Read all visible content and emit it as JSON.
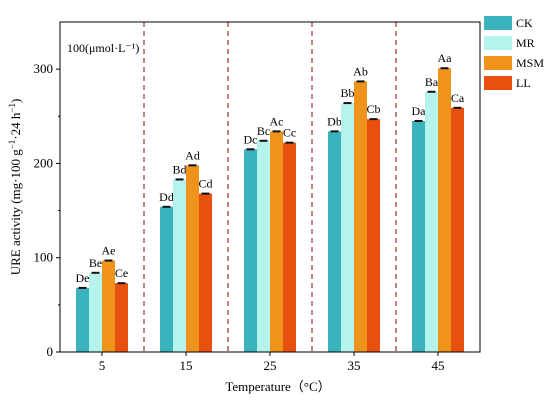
{
  "chart_data": {
    "type": "bar",
    "annotation": "100(μmol·L⁻¹)",
    "xlabel": "Temperature（°C）",
    "ylabel_parts": [
      "URE activity (mg·100 g",
      "−1",
      "·24 h",
      "−1",
      ")"
    ],
    "ylim": [
      0,
      350
    ],
    "yticks": [
      0,
      100,
      200,
      300
    ],
    "categories": [
      "5",
      "15",
      "25",
      "35",
      "45"
    ],
    "series": [
      {
        "name": "CK",
        "color": "#3bb3bd",
        "values": [
          68,
          154,
          215,
          234,
          245
        ],
        "labels": [
          "De",
          "Dd",
          "Dc",
          "Db",
          "Da"
        ]
      },
      {
        "name": "MR",
        "color": "#b5f4ee",
        "values": [
          84,
          183,
          224,
          264,
          276
        ],
        "labels": [
          "Be",
          "Bd",
          "Bc",
          "Bb",
          "Ba"
        ]
      },
      {
        "name": "MSM",
        "color": "#f0931c",
        "values": [
          97,
          198,
          234,
          287,
          301
        ],
        "labels": [
          "Ae",
          "Ad",
          "Ac",
          "Ab",
          "Aa"
        ]
      },
      {
        "name": "LL",
        "color": "#e8500e",
        "values": [
          73,
          168,
          222,
          247,
          259
        ],
        "labels": [
          "Ce",
          "Cd",
          "Cc",
          "Cb",
          "Ca"
        ]
      }
    ],
    "separators": "dashed-red",
    "legend_position": "top-right"
  }
}
